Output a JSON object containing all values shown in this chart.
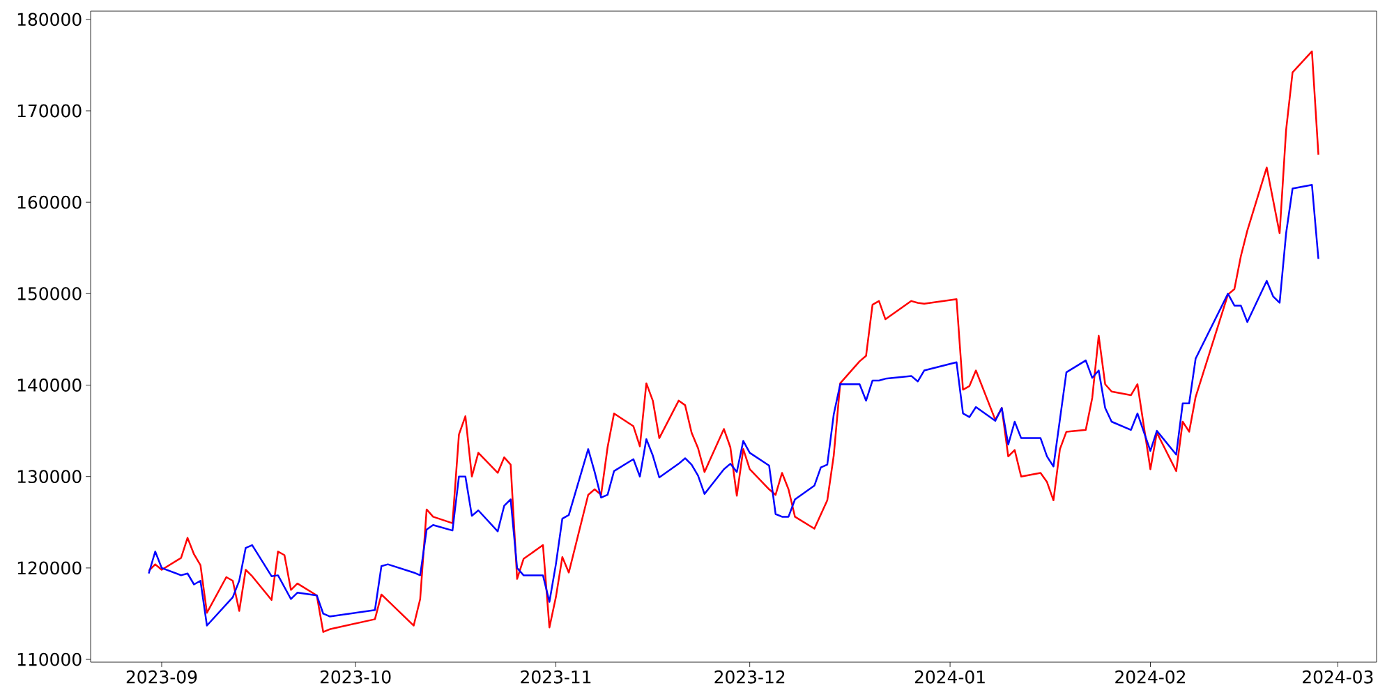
{
  "chart_data": {
    "type": "line",
    "xlim": [
      "2023-08-21",
      "2024-03-07"
    ],
    "ylim": [
      109700,
      180900
    ],
    "xticks": [
      {
        "value": "2023-09-01",
        "label": "2023-09"
      },
      {
        "value": "2023-10-01",
        "label": "2023-10"
      },
      {
        "value": "2023-11-01",
        "label": "2023-11"
      },
      {
        "value": "2023-12-01",
        "label": "2023-12"
      },
      {
        "value": "2024-01-01",
        "label": "2024-01"
      },
      {
        "value": "2024-02-01",
        "label": "2024-02"
      },
      {
        "value": "2024-03-01",
        "label": "2024-03"
      }
    ],
    "yticks": [
      110000,
      120000,
      130000,
      140000,
      150000,
      160000,
      170000,
      180000
    ],
    "series": [
      {
        "color": "#ff0000",
        "x": [
          "2023-08-30",
          "2023-08-31",
          "2023-09-01",
          "2023-09-04",
          "2023-09-05",
          "2023-09-06",
          "2023-09-07",
          "2023-09-08",
          "2023-09-11",
          "2023-09-12",
          "2023-09-13",
          "2023-09-14",
          "2023-09-15",
          "2023-09-18",
          "2023-09-19",
          "2023-09-20",
          "2023-09-21",
          "2023-09-22",
          "2023-09-25",
          "2023-09-26",
          "2023-09-27",
          "2023-10-04",
          "2023-10-05",
          "2023-10-10",
          "2023-10-11",
          "2023-10-12",
          "2023-10-13",
          "2023-10-16",
          "2023-10-17",
          "2023-10-18",
          "2023-10-19",
          "2023-10-20",
          "2023-10-23",
          "2023-10-24",
          "2023-10-25",
          "2023-10-26",
          "2023-10-27",
          "2023-10-30",
          "2023-10-31",
          "2023-11-01",
          "2023-11-02",
          "2023-11-03",
          "2023-11-06",
          "2023-11-07",
          "2023-11-08",
          "2023-11-09",
          "2023-11-10",
          "2023-11-13",
          "2023-11-14",
          "2023-11-15",
          "2023-11-16",
          "2023-11-17",
          "2023-11-20",
          "2023-11-21",
          "2023-11-22",
          "2023-11-23",
          "2023-11-24",
          "2023-11-27",
          "2023-11-28",
          "2023-11-29",
          "2023-11-30",
          "2023-12-01",
          "2023-12-04",
          "2023-12-05",
          "2023-12-06",
          "2023-12-07",
          "2023-12-08",
          "2023-12-11",
          "2023-12-13",
          "2023-12-14",
          "2023-12-15",
          "2023-12-18",
          "2023-12-19",
          "2023-12-20",
          "2023-12-21",
          "2023-12-22",
          "2023-12-26",
          "2023-12-27",
          "2023-12-28",
          "2024-01-02",
          "2024-01-03",
          "2024-01-04",
          "2024-01-05",
          "2024-01-08",
          "2024-01-09",
          "2024-01-10",
          "2024-01-11",
          "2024-01-12",
          "2024-01-15",
          "2024-01-16",
          "2024-01-17",
          "2024-01-18",
          "2024-01-19",
          "2024-01-22",
          "2024-01-23",
          "2024-01-24",
          "2024-01-25",
          "2024-01-26",
          "2024-01-29",
          "2024-01-30",
          "2024-02-01",
          "2024-02-02",
          "2024-02-05",
          "2024-02-06",
          "2024-02-07",
          "2024-02-08",
          "2024-02-13",
          "2024-02-14",
          "2024-02-15",
          "2024-02-16",
          "2024-02-19",
          "2024-02-21",
          "2024-02-22",
          "2024-02-23",
          "2024-02-26",
          "2024-02-27"
        ],
        "values": [
          119700,
          120400,
          119800,
          121100,
          123300,
          121500,
          120300,
          115100,
          119000,
          118600,
          115300,
          119800,
          119100,
          116500,
          121800,
          121400,
          117600,
          118300,
          117000,
          113000,
          113300,
          114400,
          117100,
          113700,
          116600,
          126400,
          125600,
          124900,
          134600,
          136600,
          130000,
          132600,
          130400,
          132100,
          131300,
          118800,
          121000,
          122500,
          113500,
          116800,
          121200,
          119500,
          128000,
          128600,
          128000,
          133200,
          136900,
          135500,
          133300,
          140200,
          138300,
          134200,
          138300,
          137800,
          134800,
          133100,
          130500,
          135200,
          133200,
          127900,
          133000,
          130800,
          128600,
          128000,
          130400,
          128600,
          125600,
          124300,
          127400,
          132300,
          140200,
          142600,
          143200,
          148800,
          149200,
          147200,
          149200,
          149000,
          148900,
          149400,
          139500,
          139900,
          141600,
          136200,
          137500,
          132200,
          132900,
          130000,
          130400,
          129400,
          127400,
          133000,
          134900,
          135100,
          138600,
          145400,
          140100,
          139300,
          138900,
          140100,
          130800,
          134800,
          130600,
          136000,
          134900,
          138700,
          149900,
          150500,
          154100,
          156900,
          163800,
          156600,
          167900,
          174200,
          176500,
          165200
        ]
      },
      {
        "color": "#0000ff",
        "x": [
          "2023-08-30",
          "2023-08-31",
          "2023-09-01",
          "2023-09-04",
          "2023-09-05",
          "2023-09-06",
          "2023-09-07",
          "2023-09-08",
          "2023-09-12",
          "2023-09-13",
          "2023-09-14",
          "2023-09-15",
          "2023-09-18",
          "2023-09-19",
          "2023-09-20",
          "2023-09-21",
          "2023-09-22",
          "2023-09-25",
          "2023-09-26",
          "2023-09-27",
          "2023-10-04",
          "2023-10-05",
          "2023-10-06",
          "2023-10-10",
          "2023-10-11",
          "2023-10-12",
          "2023-10-13",
          "2023-10-16",
          "2023-10-17",
          "2023-10-18",
          "2023-10-19",
          "2023-10-20",
          "2023-10-23",
          "2023-10-24",
          "2023-10-25",
          "2023-10-26",
          "2023-10-27",
          "2023-10-30",
          "2023-10-31",
          "2023-11-01",
          "2023-11-02",
          "2023-11-03",
          "2023-11-06",
          "2023-11-07",
          "2023-11-08",
          "2023-11-09",
          "2023-11-10",
          "2023-11-13",
          "2023-11-14",
          "2023-11-15",
          "2023-11-16",
          "2023-11-17",
          "2023-11-20",
          "2023-11-21",
          "2023-11-22",
          "2023-11-23",
          "2023-11-24",
          "2023-11-27",
          "2023-11-28",
          "2023-11-29",
          "2023-11-30",
          "2023-12-01",
          "2023-12-04",
          "2023-12-05",
          "2023-12-06",
          "2023-12-07",
          "2023-12-08",
          "2023-12-11",
          "2023-12-12",
          "2023-12-13",
          "2023-12-14",
          "2023-12-15",
          "2023-12-18",
          "2023-12-19",
          "2023-12-20",
          "2023-12-21",
          "2023-12-22",
          "2023-12-26",
          "2023-12-27",
          "2023-12-28",
          "2024-01-02",
          "2024-01-03",
          "2024-01-04",
          "2024-01-05",
          "2024-01-08",
          "2024-01-09",
          "2024-01-10",
          "2024-01-11",
          "2024-01-12",
          "2024-01-15",
          "2024-01-16",
          "2024-01-17",
          "2024-01-19",
          "2024-01-22",
          "2024-01-23",
          "2024-01-24",
          "2024-01-25",
          "2024-01-26",
          "2024-01-29",
          "2024-01-30",
          "2024-02-01",
          "2024-02-02",
          "2024-02-05",
          "2024-02-06",
          "2024-02-07",
          "2024-02-08",
          "2024-02-13",
          "2024-02-14",
          "2024-02-15",
          "2024-02-16",
          "2024-02-19",
          "2024-02-20",
          "2024-02-21",
          "2024-02-22",
          "2024-02-23",
          "2024-02-26",
          "2024-02-27"
        ],
        "values": [
          119400,
          121800,
          120000,
          119200,
          119400,
          118200,
          118600,
          113700,
          116800,
          118600,
          122200,
          122500,
          119100,
          119200,
          117900,
          116600,
          117300,
          117000,
          115000,
          114700,
          115400,
          120200,
          120400,
          119500,
          119200,
          124200,
          124700,
          124100,
          130000,
          130000,
          125700,
          126300,
          124000,
          126800,
          127500,
          120000,
          119200,
          119200,
          116300,
          120400,
          125400,
          125800,
          133000,
          130500,
          127700,
          128000,
          130600,
          131900,
          130000,
          134100,
          132300,
          129900,
          131400,
          132000,
          131300,
          130100,
          128100,
          130800,
          131400,
          130500,
          133900,
          132600,
          131200,
          125900,
          125600,
          125600,
          127500,
          129000,
          131000,
          131300,
          136800,
          140100,
          140100,
          138300,
          140500,
          140500,
          140700,
          141000,
          140400,
          141600,
          142500,
          136900,
          136500,
          137600,
          136100,
          137500,
          133500,
          136000,
          134200,
          134200,
          132200,
          131100,
          141400,
          142700,
          140800,
          141600,
          137500,
          136000,
          135100,
          136900,
          132800,
          135000,
          132400,
          138000,
          138000,
          142900,
          150000,
          148700,
          148700,
          146900,
          151400,
          149700,
          149000,
          156600,
          161500,
          161900,
          153800
        ]
      }
    ]
  }
}
